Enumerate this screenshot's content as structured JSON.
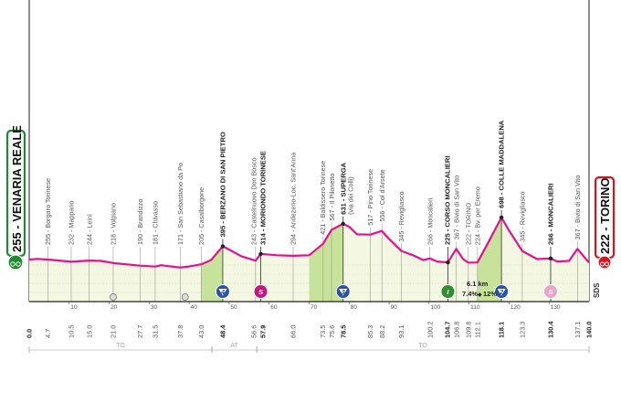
{
  "start": {
    "label": "255 - VENARIA REALE",
    "color": "#1e8a2e",
    "icon": "cyclist-icon"
  },
  "finish": {
    "label": "222 - TORINO",
    "color": "#d8141e",
    "icon": "cyclist-icon"
  },
  "brand_mark": "SDS",
  "climb_info": {
    "length": "6.1 km",
    "gradient": "7.4%",
    "max_gradient": "12%"
  },
  "colors": {
    "profile": "#e5128c",
    "fill": "#f4f7e2",
    "climb": "#c7e39a",
    "gpm": "#2a52a8",
    "sprint": "#c4187e",
    "intermediate": "#2f8f2f",
    "sprint_light": "#eaa5c9"
  },
  "chart_data": {
    "type": "area",
    "xlim": [
      0,
      140
    ],
    "x_ticks": [
      10,
      20,
      30,
      40,
      50,
      60,
      70,
      80,
      90,
      100,
      110,
      120,
      130
    ],
    "profile": [
      [
        0,
        255
      ],
      [
        2,
        262
      ],
      [
        4.7,
        255
      ],
      [
        10.5,
        232
      ],
      [
        15,
        244
      ],
      [
        18,
        240
      ],
      [
        21,
        218
      ],
      [
        27.7,
        190
      ],
      [
        31.5,
        181
      ],
      [
        33,
        195
      ],
      [
        35,
        185
      ],
      [
        37.8,
        171
      ],
      [
        40,
        182
      ],
      [
        43,
        205
      ],
      [
        45.5,
        250
      ],
      [
        48.4,
        395
      ],
      [
        50,
        360
      ],
      [
        53,
        290
      ],
      [
        56.6,
        243
      ],
      [
        57.9,
        314
      ],
      [
        62,
        300
      ],
      [
        66,
        294
      ],
      [
        70,
        300
      ],
      [
        73.5,
        421
      ],
      [
        75.6,
        567
      ],
      [
        78.5,
        631
      ],
      [
        80,
        600
      ],
      [
        82,
        520
      ],
      [
        85.3,
        517
      ],
      [
        88.2,
        556
      ],
      [
        90,
        470
      ],
      [
        93.1,
        345
      ],
      [
        96,
        300
      ],
      [
        98.5,
        250
      ],
      [
        100.2,
        266
      ],
      [
        102,
        235
      ],
      [
        104.7,
        225
      ],
      [
        106.8,
        367
      ],
      [
        108.5,
        260
      ],
      [
        109.8,
        222
      ],
      [
        112.1,
        224
      ],
      [
        115,
        450
      ],
      [
        118.1,
        698
      ],
      [
        120,
        560
      ],
      [
        123.3,
        345
      ],
      [
        127,
        260
      ],
      [
        130.4,
        266
      ],
      [
        132,
        235
      ],
      [
        135,
        240
      ],
      [
        137.1,
        367
      ],
      [
        140,
        222
      ]
    ],
    "climb_zones": [
      [
        43,
        48.4
      ],
      [
        70,
        78.5
      ],
      [
        112.1,
        118.1
      ]
    ],
    "points": [
      {
        "km": "4.7",
        "label": "255 - Borgaro Torinese"
      },
      {
        "km": "10.5",
        "label": "232 - Mappano"
      },
      {
        "km": "15.0",
        "label": "244 - Leinì"
      },
      {
        "km": "21.0",
        "label": "218 - Volpiano"
      },
      {
        "km": "27.7",
        "label": "190 - Brandizzo"
      },
      {
        "km": "31.5",
        "label": "181 - Chivasso"
      },
      {
        "km": "37.8",
        "label": "171 - San Sebastiano da Po"
      },
      {
        "km": "43.0",
        "label": "205 - Casalborgone"
      },
      {
        "km": "48.4",
        "label": "395 - BERZANO DI SAN PIETRO",
        "bold": true
      },
      {
        "km": "56.6",
        "label": "243 - Castelnuovo Don Bosco"
      },
      {
        "km": "57.9",
        "label": "314 - MORIONDO TORINESE",
        "bold": true
      },
      {
        "km": "66.0",
        "label": "294 - Andezeno-Loc. Sant'Anna"
      },
      {
        "km": "73.5",
        "label": "421 - Baldissero Torinese"
      },
      {
        "km": "75.6",
        "label": "567 - Il Pilonetto"
      },
      {
        "km": "78.5",
        "label": "631 - SUPERGA",
        "sub": "(via dei Colli)",
        "bold": true
      },
      {
        "km": "85.3",
        "label": "517 - Pino Torinese"
      },
      {
        "km": "88.2",
        "label": "556 - Col d'Arsete"
      },
      {
        "km": "93.1",
        "label": "345 - Revigliasco"
      },
      {
        "km": "100.2",
        "label": "266 - Moncalieri"
      },
      {
        "km": "104.7",
        "label": "225 - CORSO MONCALIERI",
        "bold": true
      },
      {
        "km": "106.8",
        "label": "367 - Bivio di San Vito"
      },
      {
        "km": "109.8",
        "label": "222 - TORINO"
      },
      {
        "km": "112.1",
        "label": "224 - Bv. per Eremo"
      },
      {
        "km": "118.1",
        "label": "698 - COLLE MADDALENA",
        "bold": true
      },
      {
        "km": "123.3",
        "label": "345 - Revigliasco"
      },
      {
        "km": "130.4",
        "label": "266 - MONCALIERI",
        "bold": true
      },
      {
        "km": "137.1",
        "label": "367 - Bivio di San Vito"
      }
    ],
    "km_marks": [
      {
        "km": "0.0",
        "bold": true
      },
      {
        "km": "4.7"
      },
      {
        "km": "10.5"
      },
      {
        "km": "15.0"
      },
      {
        "km": "21.0"
      },
      {
        "km": "27.7"
      },
      {
        "km": "31.5"
      },
      {
        "km": "37.8"
      },
      {
        "km": "43.0"
      },
      {
        "km": "48.4",
        "bold": true
      },
      {
        "km": "56.6"
      },
      {
        "km": "57.9",
        "bold": true
      },
      {
        "km": "66.0"
      },
      {
        "km": "73.5"
      },
      {
        "km": "75.6"
      },
      {
        "km": "78.5",
        "bold": true
      },
      {
        "km": "85.3"
      },
      {
        "km": "88.2"
      },
      {
        "km": "93.1"
      },
      {
        "km": "100.2"
      },
      {
        "km": "104.7",
        "bold": true
      },
      {
        "km": "106.8"
      },
      {
        "km": "109.8"
      },
      {
        "km": "112.1"
      },
      {
        "km": "118.1",
        "bold": true
      },
      {
        "km": "123.3"
      },
      {
        "km": "130.4",
        "bold": true
      },
      {
        "km": "137.1"
      },
      {
        "km": "140.0",
        "bold": true
      }
    ],
    "markers": [
      {
        "km": 48.4,
        "type": "gpm",
        "text": "4"
      },
      {
        "km": 57.9,
        "type": "sprint",
        "text": "S"
      },
      {
        "km": 78.5,
        "type": "gpm",
        "text": "3"
      },
      {
        "km": 104.7,
        "type": "intermediate",
        "text": "I"
      },
      {
        "km": 118.1,
        "type": "gpm",
        "text": "2"
      },
      {
        "km": 130.4,
        "type": "sprint_light",
        "text": "S"
      }
    ],
    "feed_zones": [
      21,
      39
    ],
    "provinces": [
      {
        "name": "TO",
        "from": 0,
        "to": 45.7
      },
      {
        "name": "AT",
        "from": 45.7,
        "to": 56.9
      },
      {
        "name": "TO",
        "from": 56.9,
        "to": 140
      }
    ]
  }
}
